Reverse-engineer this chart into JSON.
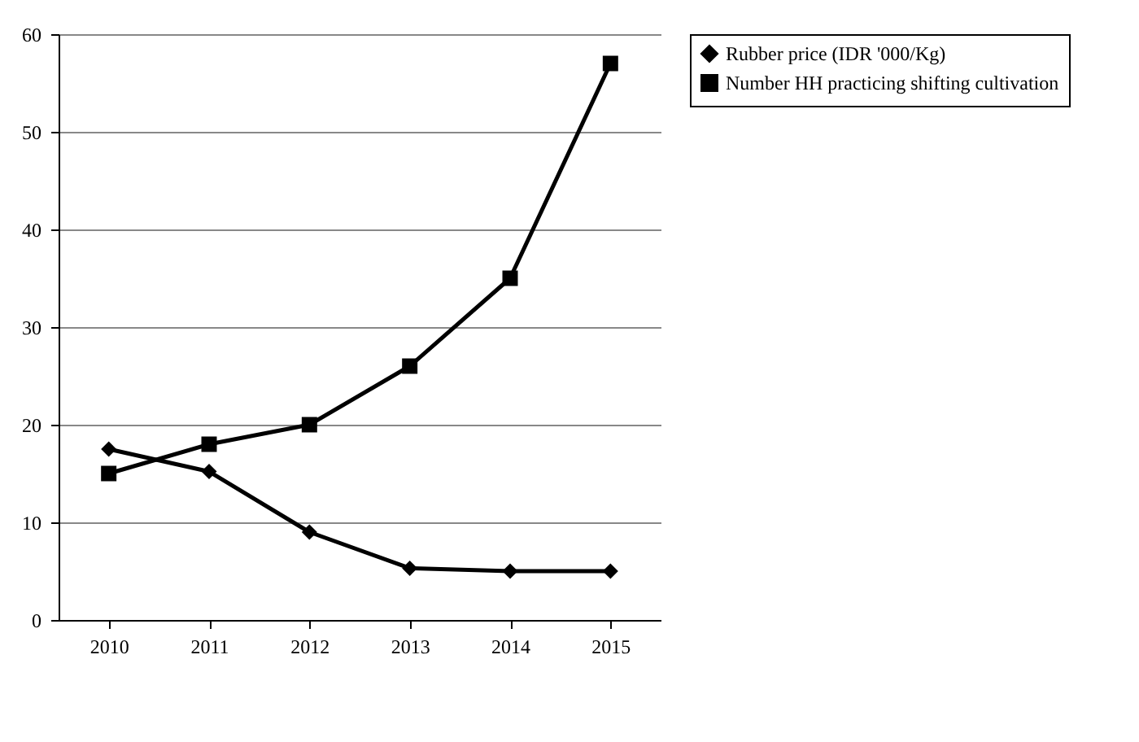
{
  "chart_data": {
    "type": "line",
    "categories": [
      "2010",
      "2011",
      "2012",
      "2013",
      "2014",
      "2015"
    ],
    "series": [
      {
        "name": "Rubber price (IDR '000/Kg)",
        "color": "#000000",
        "marker": "diamond",
        "values": [
          17.5,
          15.2,
          9,
          5.3,
          5,
          5
        ]
      },
      {
        "name": "Number HH practicing shifting cultivation",
        "color": "#000000",
        "marker": "square",
        "values": [
          15,
          18,
          20,
          26,
          35,
          57
        ]
      }
    ],
    "ylim": [
      0,
      60
    ],
    "yticks": [
      0,
      10,
      20,
      30,
      40,
      50,
      60
    ],
    "grid": "y",
    "legend": "right"
  }
}
